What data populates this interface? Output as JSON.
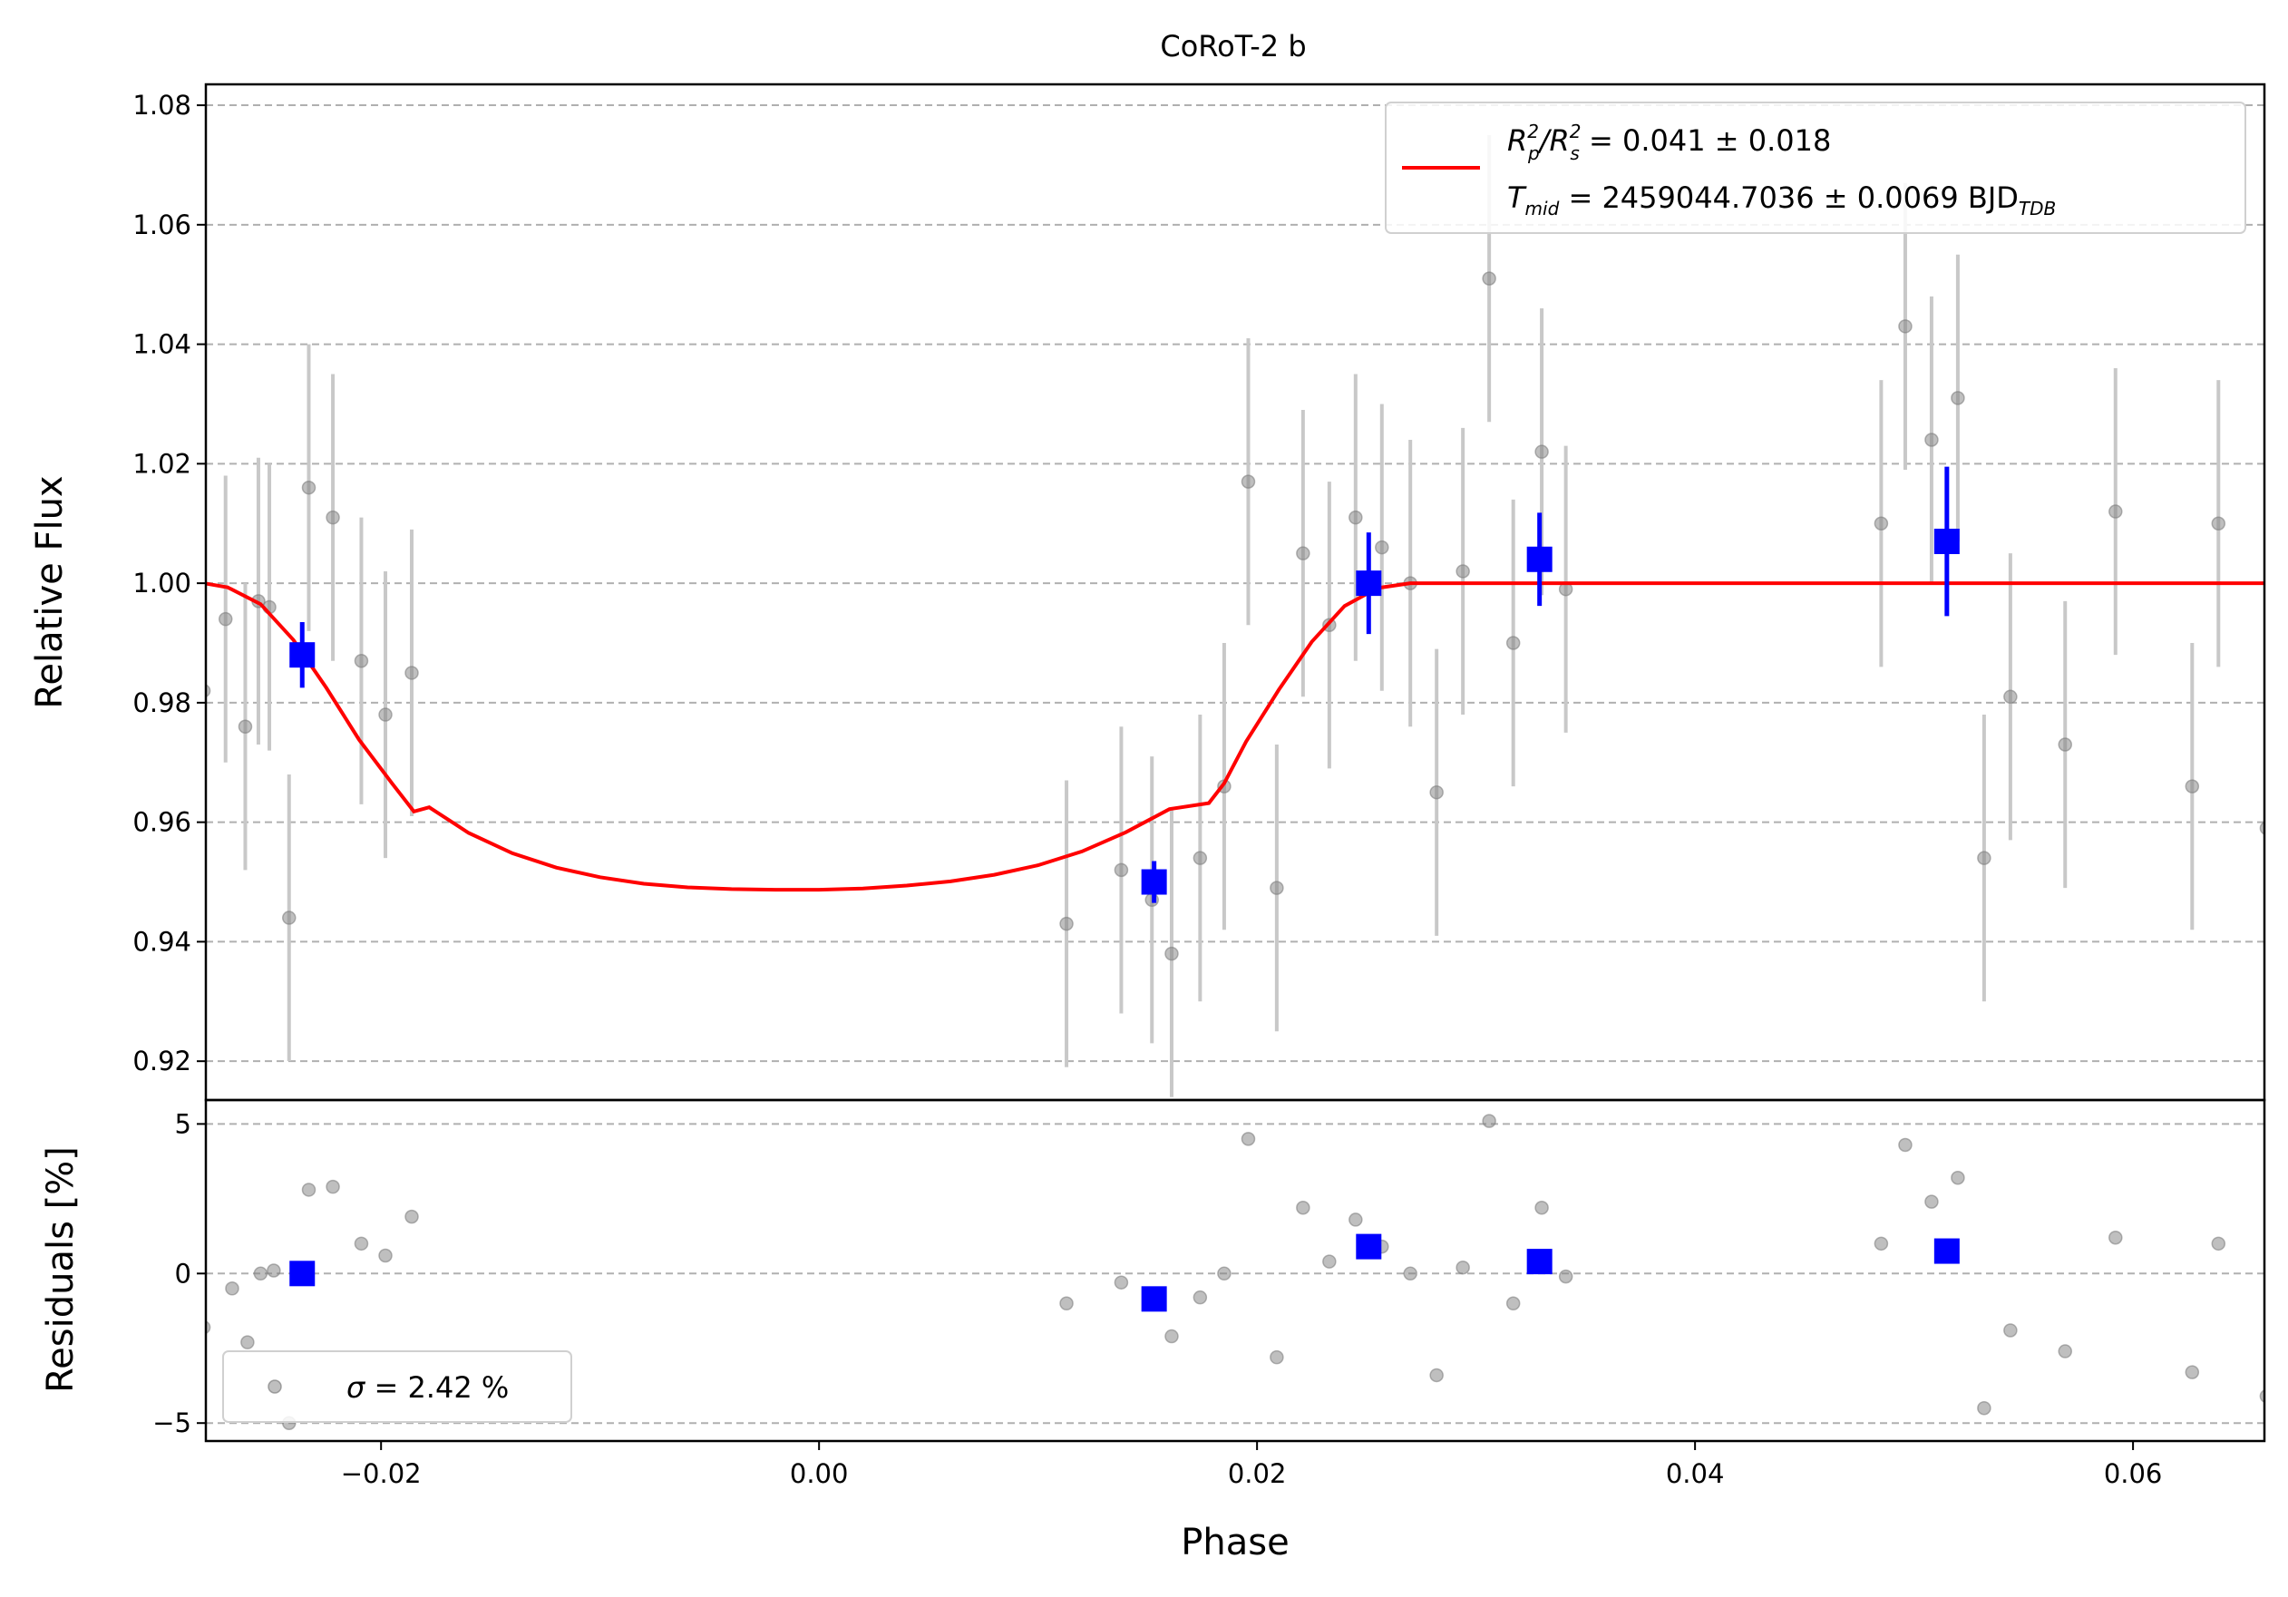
{
  "chart_data": [
    {
      "type": "scatter",
      "title": "CoRoT-2 b",
      "xlabel": "",
      "ylabel": "Relative Flux",
      "xlim": [
        -0.028,
        0.066
      ],
      "ylim": [
        0.9135,
        1.0835
      ],
      "yticks": [
        0.92,
        0.94,
        0.96,
        0.98,
        1.0,
        1.02,
        1.04,
        1.06,
        1.08
      ],
      "ytick_labels": [
        "0.92",
        "0.94",
        "0.96",
        "0.98",
        "1.00",
        "1.02",
        "1.04",
        "1.06",
        "1.08"
      ],
      "grid": "horizontal dashed",
      "legend": {
        "placement": "top-right",
        "line1_prefix": "R",
        "line1_sup1": "2",
        "line1_sub1": "p",
        "line1_mid": "/R",
        "line1_sup2": "2",
        "line1_sub2": "s",
        "line1_value": " = 0.041 ± 0.018",
        "line2_prefix": "T",
        "line2_sub": "mid",
        "line2_value": " = 2459044.7036 ± 0.0069 BJD",
        "line2_sub2": "TDB"
      },
      "colors": {
        "data": "#808080",
        "errorbar": "#c8c8c8",
        "binned": "#0000ff",
        "model": "#ff0000",
        "grid": "#b0b0b0"
      },
      "series": [
        {
          "kind": "data",
          "x": [
            -0.0281,
            -0.0271,
            -0.0262,
            -0.0256,
            -0.0251,
            -0.0242,
            -0.0233,
            -0.0222,
            -0.0209,
            -0.0198,
            -0.0186,
            0.0113,
            0.0138,
            0.0152,
            0.0161,
            0.0174,
            0.0185,
            0.0196,
            0.0209,
            0.0221,
            0.0233,
            0.0245,
            0.0257,
            0.027,
            0.0282,
            0.0294,
            0.0317,
            0.0306,
            0.033,
            0.0341,
            0.0485,
            0.0496,
            0.0508,
            0.052,
            0.0532,
            0.0544,
            0.0569,
            0.0592,
            0.0627,
            0.0639,
            0.0661
          ],
          "y": [
            0.982,
            0.994,
            0.976,
            0.997,
            0.996,
            0.944,
            1.016,
            1.011,
            0.987,
            0.978,
            0.985,
            0.943,
            0.952,
            0.947,
            0.938,
            0.954,
            0.966,
            1.017,
            0.949,
            1.005,
            0.993,
            1.011,
            1.006,
            1.0,
            0.965,
            1.002,
            0.99,
            1.051,
            1.022,
            0.999,
            1.01,
            1.043,
            1.024,
            1.031,
            0.954,
            0.981,
            0.973,
            1.012,
            0.966,
            1.01,
            0.959
          ],
          "yerr": 0.024
        },
        {
          "kind": "binned",
          "x": [
            -0.0236,
            0.0153,
            0.0251,
            0.0329,
            0.0515
          ],
          "y": [
            0.988,
            0.95,
            1.0,
            1.004,
            1.007
          ],
          "yerr": [
            0.0055,
            0.0035,
            0.0085,
            0.0078,
            0.0125
          ]
        },
        {
          "kind": "model",
          "x": [
            -0.0281,
            -0.027,
            -0.0255,
            -0.024,
            -0.0225,
            -0.021,
            -0.0195,
            -0.0185,
            -0.0178,
            -0.016,
            -0.014,
            -0.012,
            -0.01,
            -0.008,
            -0.006,
            -0.004,
            -0.002,
            0.0,
            0.002,
            0.004,
            0.006,
            0.008,
            0.01,
            0.012,
            0.014,
            0.016,
            0.0178,
            0.0185,
            0.0195,
            0.021,
            0.0225,
            0.024,
            0.0255,
            0.027,
            0.0275,
            0.066
          ],
          "y": [
            1.0,
            0.9993,
            0.9965,
            0.9905,
            0.9825,
            0.9738,
            0.9665,
            0.9618,
            0.9625,
            0.9582,
            0.9548,
            0.9524,
            0.9508,
            0.9497,
            0.9491,
            0.9488,
            0.9487,
            0.9487,
            0.9489,
            0.9494,
            0.9501,
            0.9512,
            0.9528,
            0.9551,
            0.9583,
            0.9622,
            0.9632,
            0.9665,
            0.9735,
            0.9822,
            0.9902,
            0.9962,
            0.9992,
            1.0,
            1.0,
            1.0
          ]
        }
      ]
    },
    {
      "type": "scatter",
      "title": "",
      "xlabel": "Phase",
      "ylabel": "Residuals [%]",
      "xlim": [
        -0.028,
        0.066
      ],
      "ylim": [
        -5.6,
        5.8
      ],
      "xticks": [
        -0.02,
        0.0,
        0.02,
        0.04,
        0.06
      ],
      "xtick_labels": [
        "−0.02",
        "0.00",
        "0.02",
        "0.04",
        "0.06"
      ],
      "yticks": [
        -5,
        0,
        5
      ],
      "ytick_labels": [
        "−5",
        "0",
        "5"
      ],
      "grid": "horizontal dashed",
      "legend": {
        "placement": "bottom-left",
        "sigma_symbol": "σ",
        "text": " = 2.42 %"
      },
      "series": [
        {
          "kind": "data",
          "x": [
            -0.0281,
            -0.0268,
            -0.0261,
            -0.0255,
            -0.0249,
            -0.0242,
            -0.0233,
            -0.0222,
            -0.0209,
            -0.0198,
            -0.0186,
            0.0113,
            0.0138,
            0.0152,
            0.0161,
            0.0174,
            0.0185,
            0.0196,
            0.0209,
            0.0221,
            0.0233,
            0.0245,
            0.0257,
            0.027,
            0.0282,
            0.0294,
            0.0317,
            0.0306,
            0.033,
            0.0341,
            0.0485,
            0.0496,
            0.0508,
            0.052,
            0.0532,
            0.0544,
            0.0569,
            0.0592,
            0.0627,
            0.0639,
            0.0661
          ],
          "y": [
            -1.8,
            -0.5,
            -2.3,
            0.0,
            0.1,
            -5.0,
            2.8,
            2.9,
            1.0,
            0.6,
            1.9,
            -1.0,
            -0.3,
            -0.9,
            -2.1,
            -0.8,
            0.0,
            4.5,
            -2.8,
            2.2,
            0.4,
            1.8,
            0.9,
            0.0,
            -3.4,
            0.2,
            -1.0,
            5.1,
            2.2,
            -0.1,
            1.0,
            4.3,
            2.4,
            3.2,
            -4.5,
            -1.9,
            -2.6,
            1.2,
            -3.3,
            1.0,
            -4.1
          ]
        },
        {
          "kind": "binned",
          "x": [
            -0.0236,
            0.0153,
            0.0251,
            0.0329,
            0.0515
          ],
          "y": [
            0.0,
            -0.85,
            0.9,
            0.4,
            0.75
          ]
        }
      ]
    }
  ]
}
